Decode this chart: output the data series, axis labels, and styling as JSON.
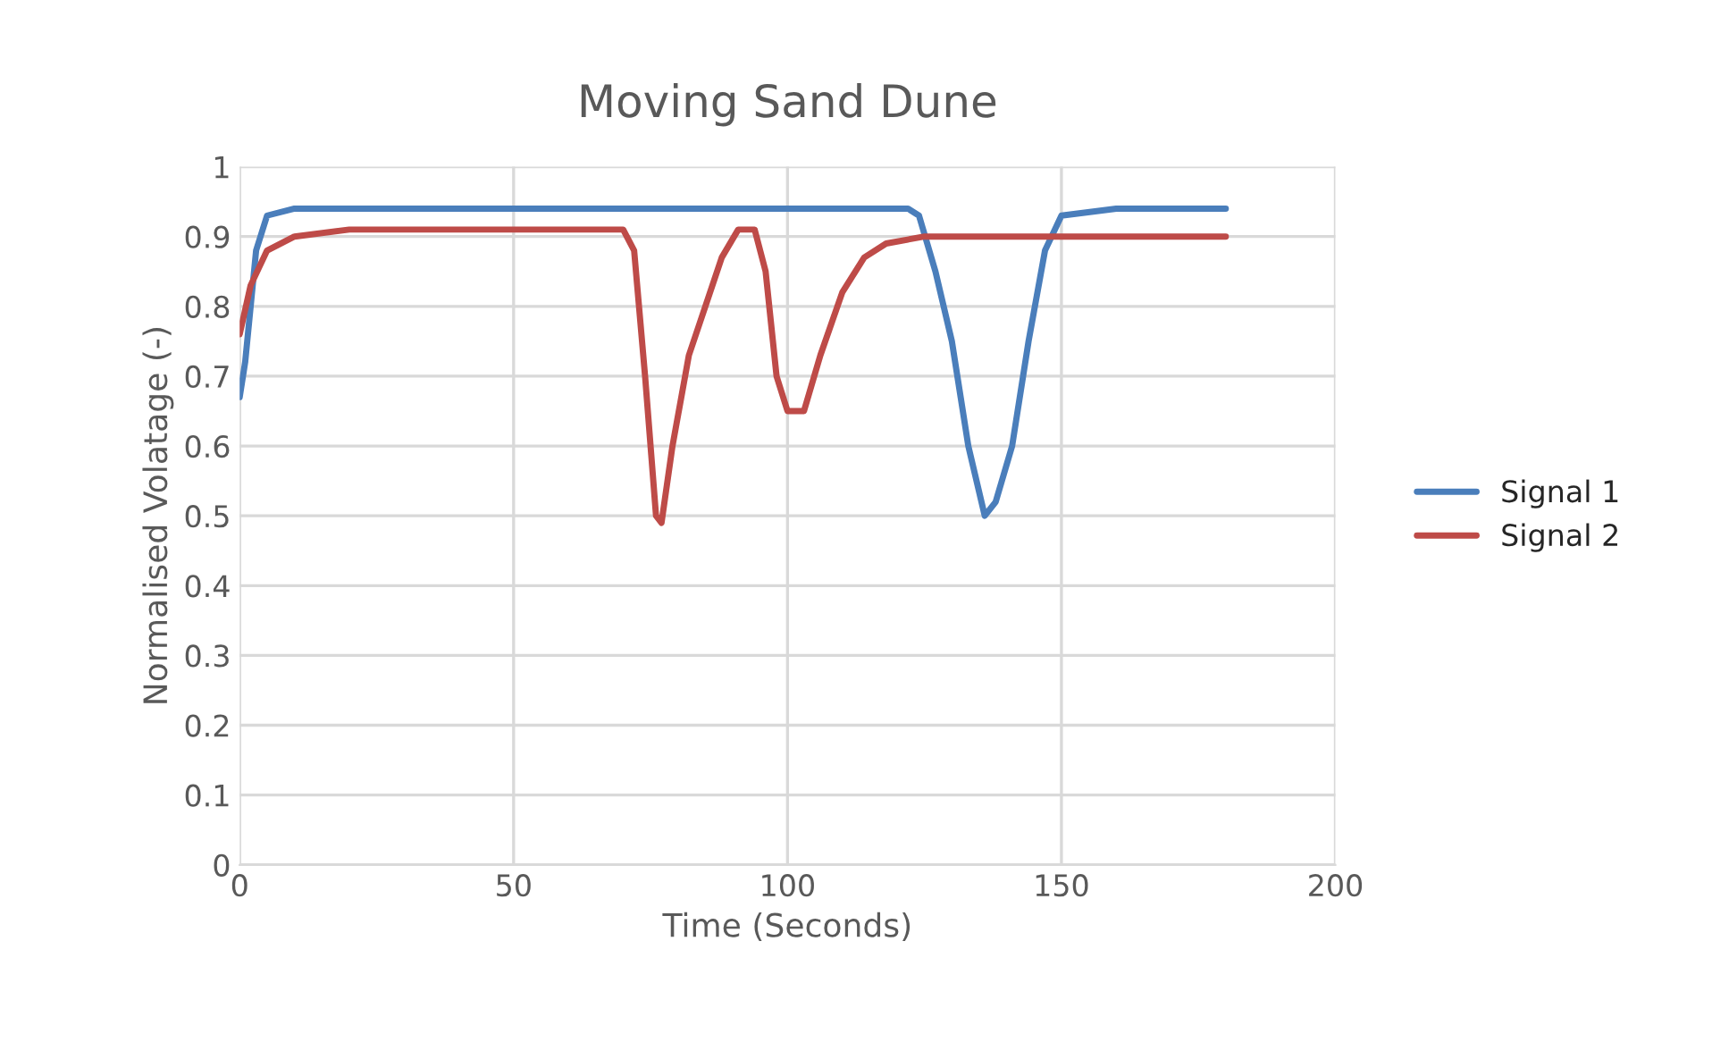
{
  "chart_data": {
    "type": "line",
    "title": "Moving Sand Dune",
    "xlabel": "Time (Seconds)",
    "ylabel": "Normalised Volatage (-)",
    "xlim": [
      0,
      200
    ],
    "xticks": [
      0,
      50,
      100,
      150,
      200
    ],
    "ylim": [
      0,
      1
    ],
    "yticks": [
      0,
      0.1,
      0.2,
      0.3,
      0.4,
      0.5,
      0.6,
      0.7,
      0.8,
      0.9,
      1
    ],
    "grid": true,
    "legend": "right",
    "marker": "none",
    "line_style": "solid",
    "series": [
      {
        "name": "Signal 1",
        "color": "#4a7ebb",
        "x": [
          0,
          1,
          3,
          5,
          10,
          20,
          30,
          40,
          50,
          60,
          70,
          80,
          90,
          100,
          110,
          120,
          122,
          124,
          127,
          130,
          133,
          136,
          138,
          141,
          144,
          147,
          150,
          160,
          170,
          180
        ],
        "values": [
          0.67,
          0.72,
          0.88,
          0.93,
          0.94,
          0.94,
          0.94,
          0.94,
          0.94,
          0.94,
          0.94,
          0.94,
          0.94,
          0.94,
          0.94,
          0.94,
          0.94,
          0.93,
          0.85,
          0.75,
          0.6,
          0.5,
          0.52,
          0.6,
          0.75,
          0.88,
          0.93,
          0.94,
          0.94,
          0.94
        ]
      },
      {
        "name": "Signal 2",
        "color": "#be4b48",
        "x": [
          0,
          2,
          5,
          10,
          20,
          30,
          40,
          50,
          60,
          70,
          72,
          74,
          76,
          77,
          79,
          82,
          85,
          88,
          91,
          94,
          96,
          98,
          100,
          103,
          106,
          110,
          114,
          118,
          125,
          140,
          160,
          180
        ],
        "values": [
          0.76,
          0.83,
          0.88,
          0.9,
          0.91,
          0.91,
          0.91,
          0.91,
          0.91,
          0.91,
          0.88,
          0.7,
          0.5,
          0.49,
          0.6,
          0.73,
          0.8,
          0.87,
          0.91,
          0.91,
          0.85,
          0.7,
          0.65,
          0.65,
          0.73,
          0.82,
          0.87,
          0.89,
          0.9,
          0.9,
          0.9,
          0.9
        ]
      }
    ]
  }
}
